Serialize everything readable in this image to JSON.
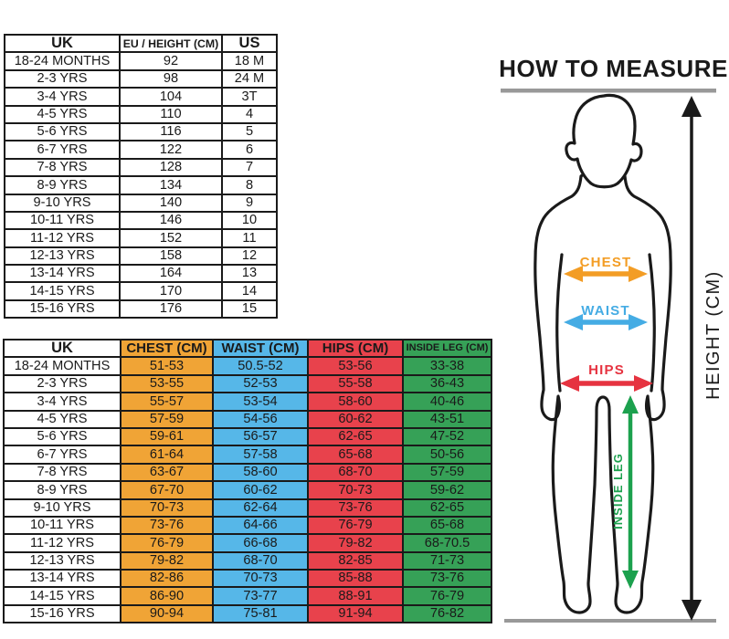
{
  "size_chart": {
    "tables": [
      {
        "name": "eu-us-conversion",
        "headers": [
          "UK",
          "EU / HEIGHT (CM)",
          "US"
        ],
        "rows": [
          [
            "18-24 MONTHS",
            "92",
            "18 M"
          ],
          [
            "2-3 YRS",
            "98",
            "24 M"
          ],
          [
            "3-4 YRS",
            "104",
            "3T"
          ],
          [
            "4-5 YRS",
            "110",
            "4"
          ],
          [
            "5-6 YRS",
            "116",
            "5"
          ],
          [
            "6-7 YRS",
            "122",
            "6"
          ],
          [
            "7-8 YRS",
            "128",
            "7"
          ],
          [
            "8-9 YRS",
            "134",
            "8"
          ],
          [
            "9-10 YRS",
            "140",
            "9"
          ],
          [
            "10-11 YRS",
            "146",
            "10"
          ],
          [
            "11-12 YRS",
            "152",
            "11"
          ],
          [
            "12-13 YRS",
            "158",
            "12"
          ],
          [
            "13-14 YRS",
            "164",
            "13"
          ],
          [
            "14-15 YRS",
            "170",
            "14"
          ],
          [
            "15-16 YRS",
            "176",
            "15"
          ]
        ]
      },
      {
        "name": "body-measurements",
        "headers": [
          "UK",
          "CHEST (CM)",
          "WAIST (CM)",
          "HIPS (CM)",
          "INSIDE LEG (CM)"
        ],
        "rows": [
          [
            "18-24 MONTHS",
            "51-53",
            "50.5-52",
            "53-56",
            "33-38"
          ],
          [
            "2-3 YRS",
            "53-55",
            "52-53",
            "55-58",
            "36-43"
          ],
          [
            "3-4 YRS",
            "55-57",
            "53-54",
            "58-60",
            "40-46"
          ],
          [
            "4-5 YRS",
            "57-59",
            "54-56",
            "60-62",
            "43-51"
          ],
          [
            "5-6 YRS",
            "59-61",
            "56-57",
            "62-65",
            "47-52"
          ],
          [
            "6-7 YRS",
            "61-64",
            "57-58",
            "65-68",
            "50-56"
          ],
          [
            "7-8 YRS",
            "63-67",
            "58-60",
            "68-70",
            "57-59"
          ],
          [
            "8-9 YRS",
            "67-70",
            "60-62",
            "70-73",
            "59-62"
          ],
          [
            "9-10 YRS",
            "70-73",
            "62-64",
            "73-76",
            "62-65"
          ],
          [
            "10-11 YRS",
            "73-76",
            "64-66",
            "76-79",
            "65-68"
          ],
          [
            "11-12 YRS",
            "76-79",
            "66-68",
            "79-82",
            "68-70.5"
          ],
          [
            "12-13 YRS",
            "79-82",
            "68-70",
            "82-85",
            "71-73"
          ],
          [
            "13-14 YRS",
            "82-86",
            "70-73",
            "85-88",
            "73-76"
          ],
          [
            "14-15 YRS",
            "86-90",
            "73-77",
            "88-91",
            "76-79"
          ],
          [
            "15-16 YRS",
            "90-94",
            "75-81",
            "91-94",
            "76-82"
          ]
        ]
      }
    ]
  },
  "measure_panel": {
    "title": "HOW TO MEASURE",
    "labels": {
      "chest": "CHEST",
      "waist": "WAIST",
      "hips": "HIPS",
      "inside_leg": "INSIDE LEG",
      "height": "HEIGHT (CM)"
    }
  },
  "colors": {
    "table": {
      "chest": "#F0A436",
      "waist": "#56B7E8",
      "hips": "#E8424C",
      "inside_leg": "#36A157"
    },
    "figure": {
      "chest": "#F39D25",
      "waist": "#45ACE4",
      "hips": "#E63340",
      "inside_leg": "#1CA14E",
      "outline": "#1A1A1A",
      "guide": "#999999"
    }
  }
}
